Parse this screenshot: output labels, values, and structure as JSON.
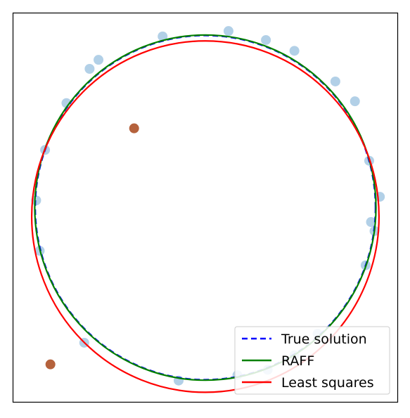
{
  "chart_data": {
    "type": "scatter",
    "title": "",
    "xlabel": "",
    "ylabel": "",
    "xlim": [
      -1.08,
      1.08
    ],
    "ylim": [
      -1.08,
      1.08
    ],
    "aspect": "equal",
    "ticks": false,
    "grid": false,
    "legend": {
      "position": "bottom-right",
      "entries": [
        {
          "label": "True solution",
          "color": "#0000ff",
          "style": "dashed"
        },
        {
          "label": "RAFF",
          "color": "#008000",
          "style": "solid"
        },
        {
          "label": "Least squares",
          "color": "#ff0000",
          "style": "solid"
        }
      ]
    },
    "points": {
      "inliers": {
        "color": "#aecde6",
        "xy": [
          [
            -0.24,
            0.95
          ],
          [
            0.13,
            0.98
          ],
          [
            0.34,
            0.93
          ],
          [
            0.5,
            0.87
          ],
          [
            0.73,
            0.7
          ],
          [
            0.84,
            0.59
          ],
          [
            0.92,
            0.26
          ],
          [
            0.98,
            0.06
          ],
          [
            0.95,
            -0.13
          ],
          [
            0.93,
            -0.08
          ],
          [
            0.9,
            -0.32
          ],
          [
            -0.6,
            0.82
          ],
          [
            -0.65,
            0.77
          ],
          [
            -0.78,
            0.58
          ],
          [
            -0.9,
            0.32
          ],
          [
            -0.95,
            0.04
          ],
          [
            -0.93,
            -0.24
          ],
          [
            -0.68,
            -0.75
          ],
          [
            -0.15,
            -0.96
          ],
          [
            0.18,
            -0.93
          ],
          [
            0.35,
            -0.9
          ],
          [
            0.5,
            -0.82
          ],
          [
            0.63,
            -0.7
          ]
        ]
      },
      "outliers": {
        "color": "#b5623c",
        "xy": [
          [
            -0.4,
            0.44
          ],
          [
            -0.87,
            -0.87
          ]
        ]
      }
    },
    "circles": [
      {
        "name": "True solution",
        "cx": 0.0,
        "cy": 0.0,
        "r": 0.955,
        "color": "#0000ff",
        "style": "dashed"
      },
      {
        "name": "RAFF",
        "cx": 0.0,
        "cy": 0.0,
        "r": 0.958,
        "color": "#008000",
        "style": "solid"
      },
      {
        "name": "Least squares",
        "cx": 0.0,
        "cy": -0.05,
        "r": 0.975,
        "color": "#ff0000",
        "style": "solid"
      }
    ]
  }
}
